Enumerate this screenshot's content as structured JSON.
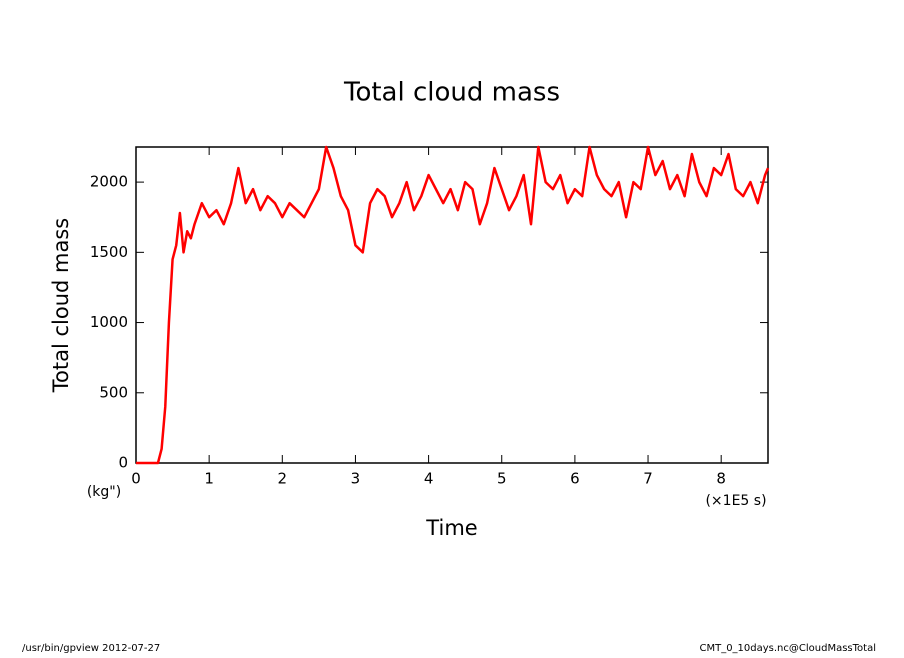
{
  "chart_data": {
    "type": "line",
    "title": "Total cloud mass",
    "x_label": "Time",
    "y_label": "Total cloud mass",
    "x_unit": "(×1E5 s)",
    "y_unit": "(kg\")",
    "footer_left": "/usr/bin/gpview  2012-07-27",
    "footer_right": "CMT_0_10days.nc@CloudMassTotal",
    "xlim": [
      0,
      8.64
    ],
    "ylim": [
      0,
      2250
    ],
    "xticks": [
      0,
      1,
      2,
      3,
      4,
      5,
      6,
      7,
      8
    ],
    "yticks": [
      0,
      500,
      1000,
      1500,
      2000
    ],
    "series": [
      {
        "color": "#ff0000",
        "x": [
          0,
          0.3,
          0.35,
          0.4,
          0.45,
          0.5,
          0.55,
          0.6,
          0.65,
          0.7,
          0.75,
          0.8,
          0.9,
          1.0,
          1.1,
          1.2,
          1.3,
          1.4,
          1.5,
          1.6,
          1.7,
          1.8,
          1.9,
          2.0,
          2.1,
          2.2,
          2.3,
          2.4,
          2.5,
          2.6,
          2.7,
          2.8,
          2.9,
          3.0,
          3.1,
          3.2,
          3.3,
          3.4,
          3.5,
          3.6,
          3.7,
          3.8,
          3.9,
          4.0,
          4.1,
          4.2,
          4.3,
          4.4,
          4.5,
          4.6,
          4.7,
          4.8,
          4.9,
          5.0,
          5.1,
          5.2,
          5.3,
          5.4,
          5.5,
          5.6,
          5.7,
          5.8,
          5.9,
          6.0,
          6.1,
          6.2,
          6.3,
          6.4,
          6.5,
          6.6,
          6.7,
          6.8,
          6.9,
          7.0,
          7.1,
          7.2,
          7.3,
          7.4,
          7.5,
          7.6,
          7.7,
          7.8,
          7.9,
          8.0,
          8.1,
          8.2,
          8.3,
          8.4,
          8.5,
          8.6,
          8.64
        ],
        "values": [
          0,
          0,
          100,
          400,
          1000,
          1450,
          1550,
          1780,
          1500,
          1650,
          1600,
          1700,
          1850,
          1750,
          1800,
          1700,
          1850,
          2100,
          1850,
          1950,
          1800,
          1900,
          1850,
          1750,
          1850,
          1800,
          1750,
          1850,
          1950,
          2250,
          2100,
          1900,
          1800,
          1550,
          1500,
          1850,
          1950,
          1900,
          1750,
          1850,
          2000,
          1800,
          1900,
          2050,
          1950,
          1850,
          1950,
          1800,
          2000,
          1950,
          1700,
          1850,
          2100,
          1950,
          1800,
          1900,
          2050,
          1700,
          2250,
          2000,
          1950,
          2050,
          1850,
          1950,
          1900,
          2250,
          2050,
          1950,
          1900,
          2000,
          1750,
          2000,
          1950,
          2250,
          2050,
          2150,
          1950,
          2050,
          1900,
          2200,
          2000,
          1900,
          2100,
          2050,
          2200,
          1950,
          1900,
          2000,
          1850,
          2050,
          2100
        ]
      }
    ]
  }
}
